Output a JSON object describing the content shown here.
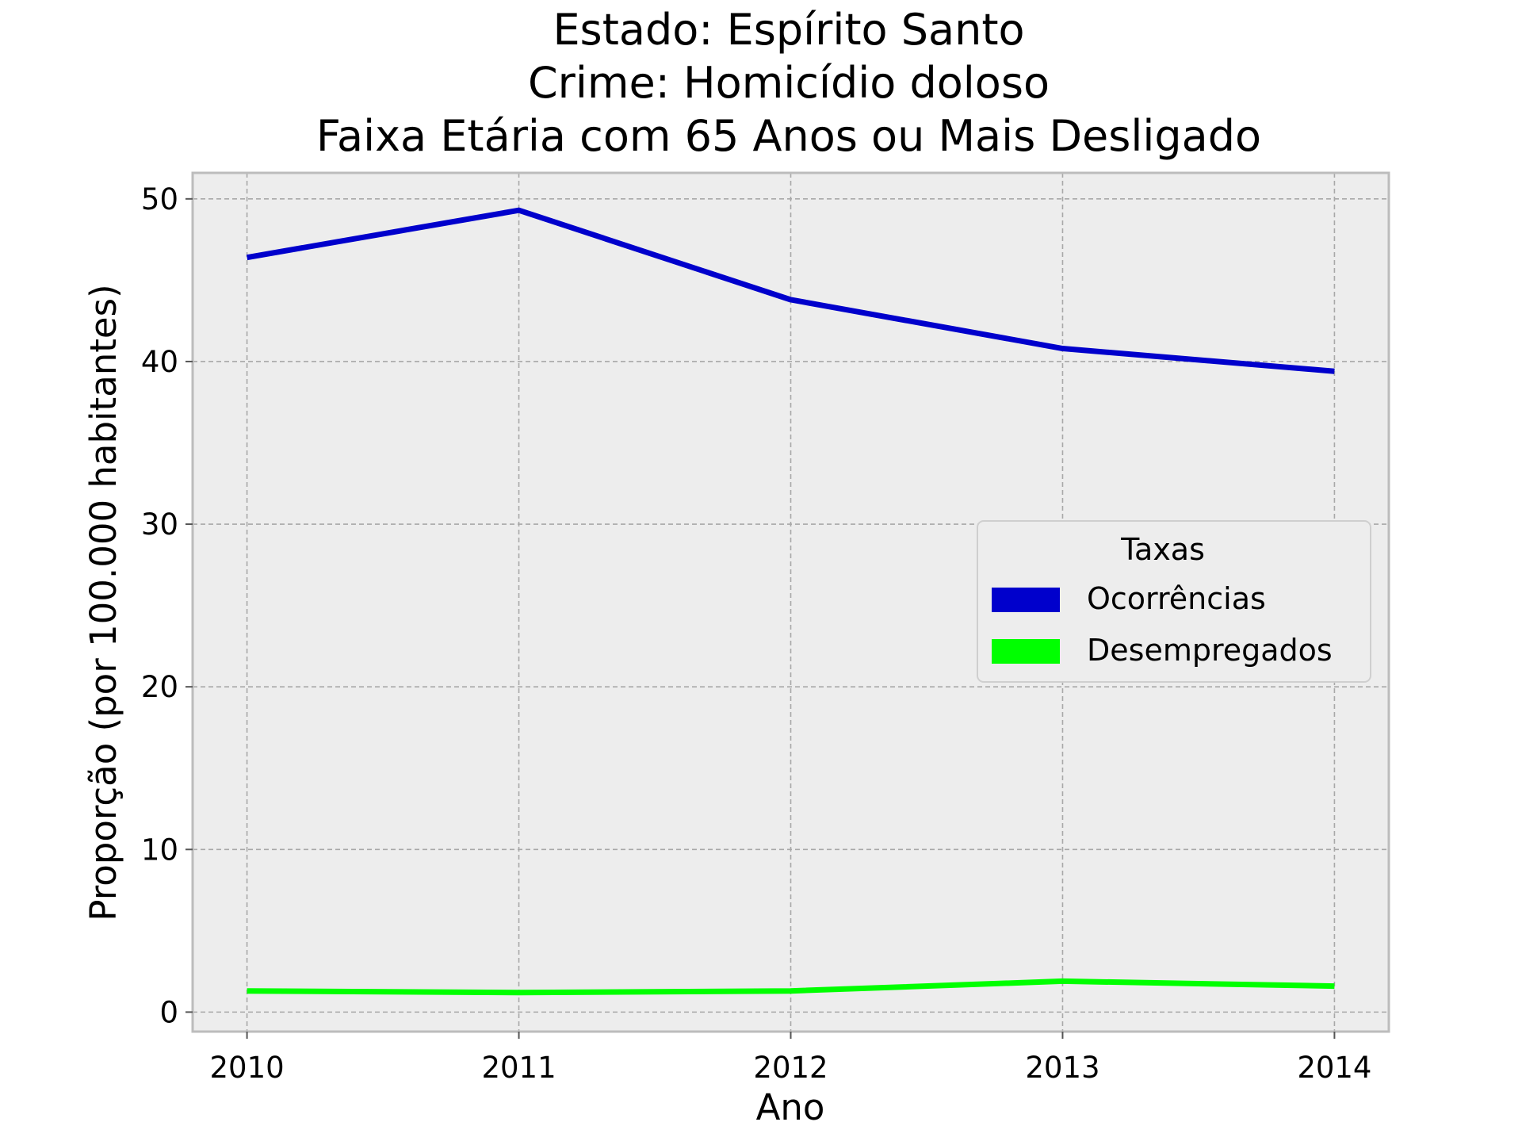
{
  "chart_data": {
    "type": "line",
    "title_lines": [
      "Estado: Espírito Santo",
      "Crime: Homicídio doloso",
      "Faixa Etária com 65 Anos ou Mais   Desligado"
    ],
    "xlabel": "Ano",
    "ylabel": "Proporção (por 100.000 habitantes)",
    "x": [
      2010,
      2011,
      2012,
      2013,
      2014
    ],
    "x_tick_labels": [
      "2010",
      "2011",
      "2012",
      "2013",
      "2014"
    ],
    "y_ticks": [
      0,
      10,
      20,
      30,
      40,
      50
    ],
    "y_tick_labels": [
      "0",
      "10",
      "20",
      "30",
      "40",
      "50"
    ],
    "xlim": [
      2009.8,
      2014.2
    ],
    "ylim": [
      -1.2,
      51.6
    ],
    "grid": true,
    "legend": {
      "title": "Taxas",
      "placement": "center-right"
    },
    "series": [
      {
        "name": "Ocorrências",
        "color": "#0000cc",
        "values": [
          46.4,
          49.3,
          43.8,
          40.8,
          39.4
        ]
      },
      {
        "name": "Desempregados",
        "color": "#00ff00",
        "values": [
          1.3,
          1.2,
          1.3,
          1.9,
          1.6
        ]
      }
    ],
    "colors": {
      "plot_background": "#ededed",
      "grid": "#a8a8a8",
      "frame": "#bcbcbc"
    }
  }
}
